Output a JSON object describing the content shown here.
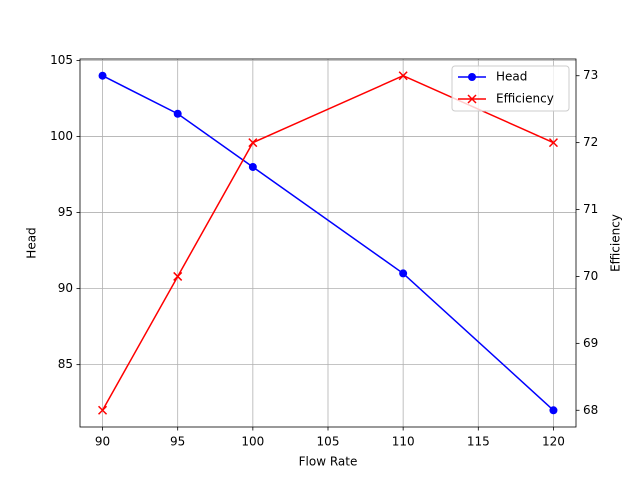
{
  "chart_data": {
    "type": "line",
    "x_label": "Flow Rate",
    "y_label": "Head",
    "y2_label": "Efficiency",
    "x": [
      90,
      95,
      100,
      110,
      120
    ],
    "series": [
      {
        "name": "Head",
        "color": "#0000ff",
        "marker": "circle",
        "values": [
          104,
          101.5,
          98,
          91,
          82
        ]
      },
      {
        "name": "Efficiency",
        "color": "#ff0000",
        "marker": "x",
        "axis": "y2",
        "values": [
          68,
          70,
          72,
          73,
          72
        ]
      }
    ],
    "xlim": [
      88.5,
      121.5
    ],
    "xticks": [
      90,
      95,
      100,
      105,
      110,
      115,
      120
    ],
    "ylim": [
      80.9,
      105.1
    ],
    "yticks": [
      85,
      90,
      95,
      100,
      105
    ],
    "y2lim": [
      67.75,
      73.25
    ],
    "y2ticks": [
      68,
      69,
      70,
      71,
      72,
      73
    ],
    "grid": true,
    "legend": "upper right"
  }
}
